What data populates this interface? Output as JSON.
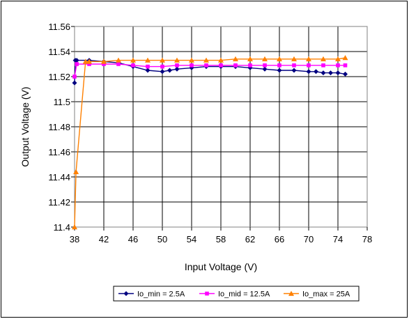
{
  "chart_data": {
    "type": "line",
    "title": "",
    "xlabel": "Input Voltage (V)",
    "ylabel": "Output Voltage (V)",
    "xlim": [
      38,
      78
    ],
    "ylim": [
      11.4,
      11.56
    ],
    "xticks": [
      38,
      42,
      46,
      50,
      54,
      58,
      62,
      66,
      70,
      74,
      78
    ],
    "yticks": [
      11.4,
      11.42,
      11.44,
      11.46,
      11.48,
      11.5,
      11.52,
      11.54,
      11.56
    ],
    "yticks_labels": [
      "11.4",
      "11.42",
      "11.44",
      "11.46",
      "11.48",
      "11.5",
      "11.52",
      "11.54",
      "11.56"
    ],
    "grid": true,
    "legend_position": "bottom",
    "series": [
      {
        "name": "Io_min = 2.5A",
        "color": "#000080",
        "marker": "diamond",
        "x": [
          38,
          38.1,
          38.3,
          40,
          42,
          44,
          46,
          48,
          50,
          51,
          52,
          54,
          56,
          58,
          60,
          62,
          64,
          66,
          68,
          70,
          71,
          72,
          73,
          74,
          75
        ],
        "y": [
          11.515,
          11.533,
          11.533,
          11.533,
          11.532,
          11.531,
          11.528,
          11.525,
          11.524,
          11.525,
          11.526,
          11.527,
          11.528,
          11.528,
          11.528,
          11.527,
          11.526,
          11.525,
          11.525,
          11.524,
          11.524,
          11.523,
          11.523,
          11.523,
          11.522
        ]
      },
      {
        "name": "Io_mid = 12.5A",
        "color": "#FF00FF",
        "marker": "square",
        "x": [
          38,
          38.3,
          40,
          42,
          44,
          46,
          48,
          50,
          52,
          54,
          56,
          58,
          60,
          62,
          64,
          66,
          68,
          70,
          72,
          74,
          75
        ],
        "y": [
          11.52,
          11.53,
          11.53,
          11.53,
          11.53,
          11.529,
          11.528,
          11.528,
          11.529,
          11.529,
          11.529,
          11.529,
          11.529,
          11.529,
          11.529,
          11.529,
          11.529,
          11.529,
          11.529,
          11.529,
          11.529
        ]
      },
      {
        "name": "Io_max = 25A",
        "color": "#FF8000",
        "marker": "triangle",
        "x": [
          38,
          38.2,
          39.5,
          40,
          42,
          44,
          46,
          48,
          50,
          52,
          54,
          56,
          58,
          60,
          62,
          64,
          66,
          68,
          70,
          72,
          74,
          75
        ],
        "y": [
          11.4,
          11.444,
          11.532,
          11.532,
          11.532,
          11.533,
          11.533,
          11.533,
          11.533,
          11.533,
          11.533,
          11.533,
          11.533,
          11.534,
          11.534,
          11.534,
          11.534,
          11.534,
          11.534,
          11.534,
          11.534,
          11.535
        ]
      }
    ]
  }
}
